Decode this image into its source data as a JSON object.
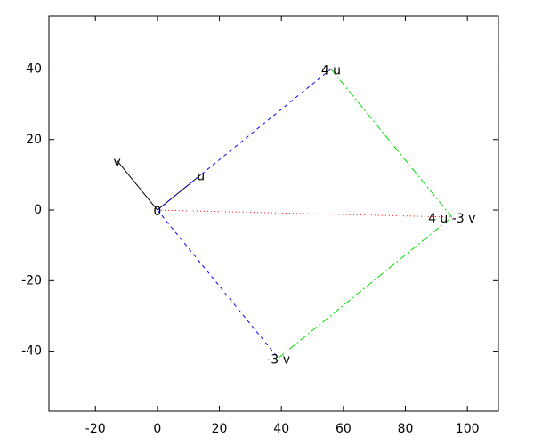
{
  "chart_data": {
    "type": "vector",
    "xlim": [
      -35,
      110
    ],
    "ylim": [
      -57,
      55
    ],
    "xticks": [
      -20,
      0,
      20,
      40,
      60,
      80,
      100
    ],
    "yticks": [
      -40,
      -20,
      0,
      20,
      40
    ],
    "vectors": [
      {
        "x": [
          0,
          14
        ],
        "y": [
          0,
          10
        ],
        "color": "#000000",
        "dash": "solid"
      },
      {
        "x": [
          0,
          -13
        ],
        "y": [
          0,
          14
        ],
        "color": "#000000",
        "dash": "solid"
      },
      {
        "x": [
          0,
          56
        ],
        "y": [
          0,
          40
        ],
        "color": "#0000ff",
        "dash": "dashed"
      },
      {
        "x": [
          0,
          39
        ],
        "y": [
          0,
          -42
        ],
        "color": "#0000ff",
        "dash": "dashed"
      },
      {
        "x": [
          56,
          95
        ],
        "y": [
          40,
          -2
        ],
        "color": "#00dd00",
        "dash": "dashdot"
      },
      {
        "x": [
          39,
          95
        ],
        "y": [
          -42,
          -2
        ],
        "color": "#00dd00",
        "dash": "dashdot"
      },
      {
        "x": [
          0,
          95
        ],
        "y": [
          0,
          -2
        ],
        "color": "#ff0000",
        "dash": "dotted"
      }
    ],
    "labels": [
      {
        "text": "u",
        "x": 14,
        "y": 10
      },
      {
        "text": "v",
        "x": -13,
        "y": 14
      },
      {
        "text": "0",
        "x": 0,
        "y": 0
      },
      {
        "text": "4 u",
        "x": 56,
        "y": 40
      },
      {
        "text": "-3 v",
        "x": 39,
        "y": -42
      },
      {
        "text": "4 u -3 v",
        "x": 95,
        "y": -2
      }
    ]
  }
}
